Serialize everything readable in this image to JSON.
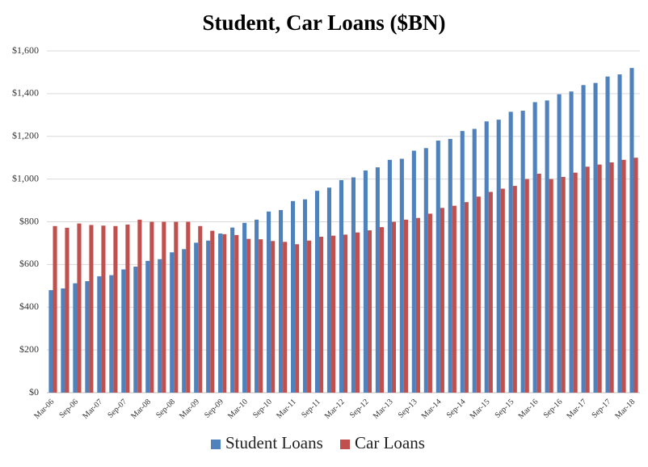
{
  "chart_data": {
    "type": "bar",
    "title": "Student, Car Loans ($BN)",
    "categories": [
      "Mar-06",
      null,
      "Sep-06",
      null,
      "Mar-07",
      null,
      "Sep-07",
      null,
      "Mar-08",
      null,
      "Sep-08",
      null,
      "Mar-09",
      null,
      "Sep-09",
      null,
      "Mar-10",
      null,
      "Sep-10",
      null,
      "Mar-11",
      null,
      "Sep-11",
      null,
      "Mar-12",
      null,
      "Sep-12",
      null,
      "Mar-13",
      null,
      "Sep-13",
      null,
      "Mar-14",
      null,
      "Sep-14",
      null,
      "Mar-15",
      null,
      "Sep-15",
      null,
      "Mar-16",
      null,
      "Sep-16",
      null,
      "Mar-17",
      null,
      "Sep-17",
      null,
      "Mar-18"
    ],
    "series": [
      {
        "name": "Student Loans",
        "color": "#4f81bd",
        "values": [
          480,
          488,
          512,
          522,
          545,
          550,
          577,
          590,
          617,
          625,
          657,
          672,
          702,
          712,
          745,
          773,
          795,
          810,
          848,
          855,
          897,
          905,
          945,
          960,
          995,
          1008,
          1040,
          1055,
          1090,
          1095,
          1133,
          1145,
          1180,
          1188,
          1225,
          1235,
          1270,
          1278,
          1315,
          1320,
          1360,
          1368,
          1397,
          1410,
          1440,
          1450,
          1480,
          1490,
          1520
        ]
      },
      {
        "name": "Car Loans",
        "color": "#c0504d",
        "values": [
          780,
          772,
          792,
          785,
          782,
          780,
          787,
          810,
          800,
          800,
          800,
          800,
          780,
          758,
          742,
          738,
          720,
          718,
          710,
          706,
          695,
          712,
          730,
          735,
          740,
          750,
          760,
          775,
          800,
          810,
          818,
          838,
          865,
          875,
          892,
          918,
          940,
          955,
          968,
          1000,
          1025,
          1000,
          1010,
          1030,
          1058,
          1068,
          1078,
          1090,
          1100
        ]
      }
    ],
    "ylim": [
      0,
      1600
    ],
    "yticks": [
      {
        "value": 0,
        "label": "$0"
      },
      {
        "value": 200,
        "label": "$200"
      },
      {
        "value": 400,
        "label": "$400"
      },
      {
        "value": 600,
        "label": "$600"
      },
      {
        "value": 800,
        "label": "$800"
      },
      {
        "value": 1000,
        "label": "$1,000"
      },
      {
        "value": 1200,
        "label": "$1,200"
      },
      {
        "value": 1400,
        "label": "$1,400"
      },
      {
        "value": 1600,
        "label": "$1,600"
      }
    ],
    "grid": true,
    "legend": "bottom"
  }
}
